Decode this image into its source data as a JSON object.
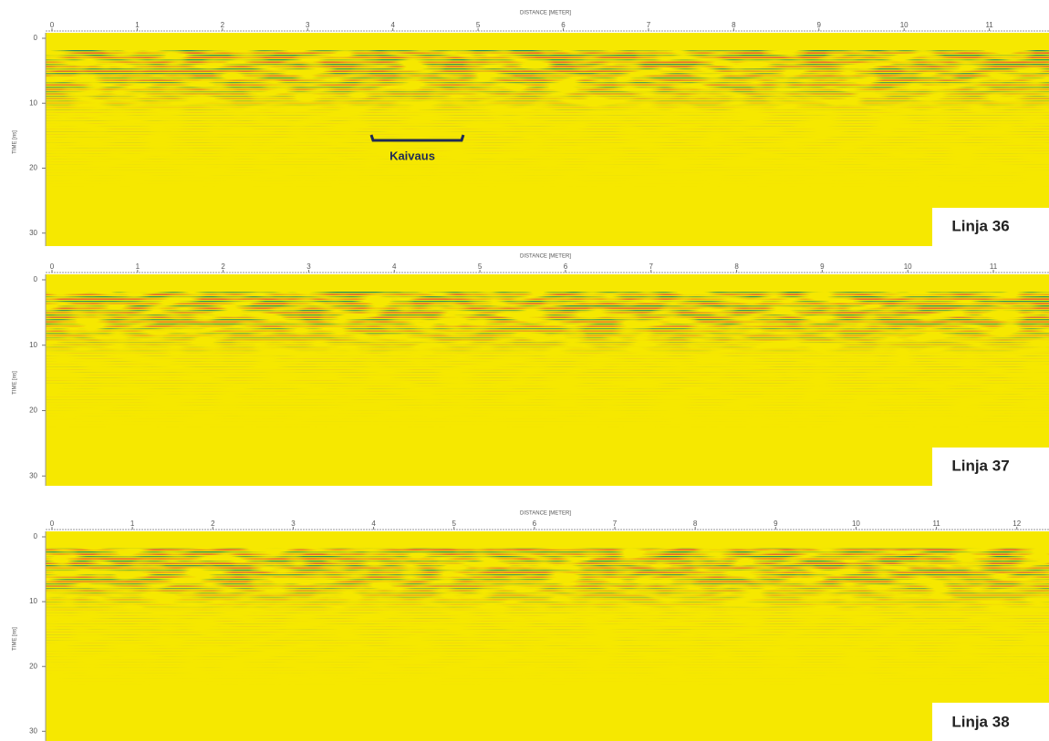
{
  "panels": [
    {
      "x_label": "DISTANCE [METER]",
      "y_label": "TIME [ns]",
      "label": "Linja 36",
      "xlim": [
        0,
        11.7
      ],
      "xticks": [
        0,
        1,
        2,
        3,
        4,
        5,
        6,
        7,
        8,
        9,
        10,
        11
      ],
      "ylim": [
        0,
        32
      ],
      "yticks": [
        0,
        10,
        20,
        30
      ],
      "annotation": "Kaivaus"
    },
    {
      "x_label": "DISTANCE [METER]",
      "y_label": "TIME [ns]",
      "label": "Linja 37",
      "xlim": [
        0,
        11.65
      ],
      "xticks": [
        0,
        1,
        2,
        3,
        4,
        5,
        6,
        7,
        8,
        9,
        10,
        11
      ],
      "ylim": [
        0,
        31.5
      ],
      "yticks": [
        0,
        10,
        20,
        30
      ]
    },
    {
      "x_label": "DISTANCE [METER]",
      "y_label": "TIME [ns]",
      "label": "Linja 38",
      "xlim": [
        0,
        12.4
      ],
      "xticks": [
        0,
        1,
        2,
        3,
        4,
        5,
        6,
        7,
        8,
        9,
        10,
        11,
        12
      ],
      "ylim": [
        0,
        31.5
      ],
      "yticks": [
        0,
        10,
        20,
        30
      ]
    }
  ]
}
